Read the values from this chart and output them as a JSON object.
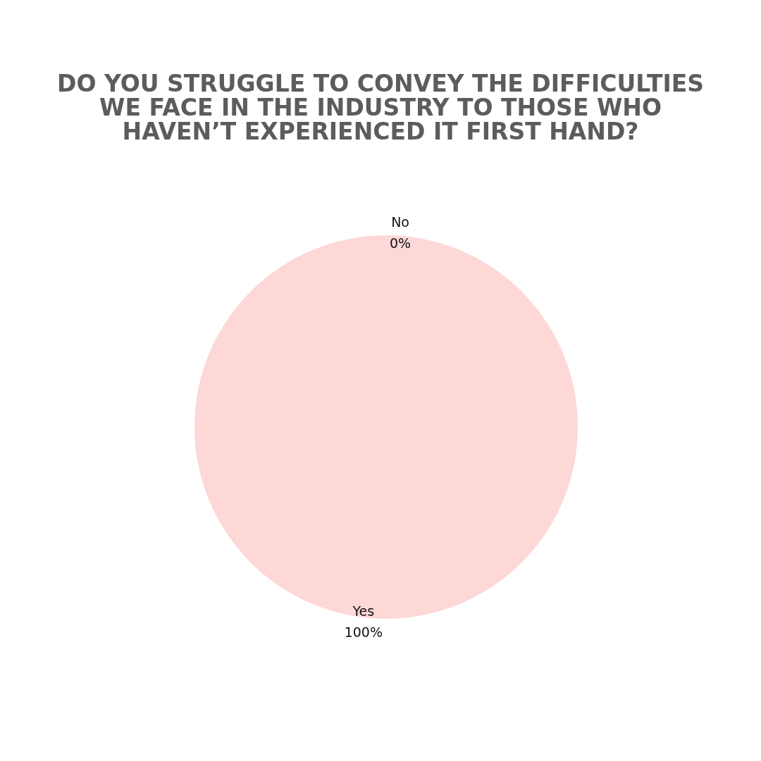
{
  "chart_data": {
    "type": "pie",
    "title": "DO YOU STRUGGLE TO CONVEY THE DIFFICULTIES\nWE FACE IN THE INDUSTRY TO THOSE WHO\nHAVEN’T EXPERIENCED IT FIRST HAND?",
    "categories": [
      "Yes",
      "No"
    ],
    "values": [
      100,
      0
    ],
    "colors": [
      "#fdd8d7",
      "#fdd8d7"
    ],
    "value_labels": [
      "100%",
      "0%"
    ],
    "legend": false
  }
}
